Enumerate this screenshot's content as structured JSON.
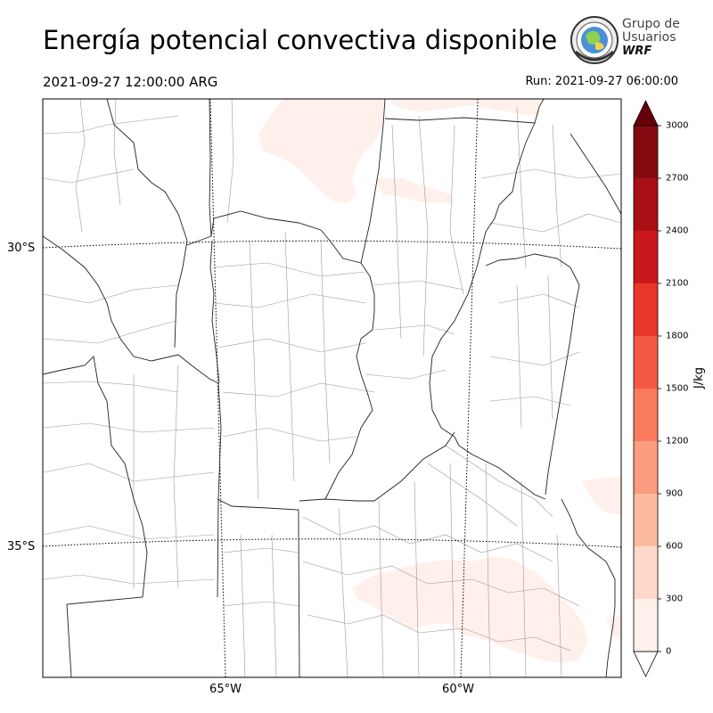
{
  "header": {
    "title": "Energía potencial convectiva disponible",
    "valid_time": "2021-09-27 12:00:00 ARG",
    "run_time": "Run: 2021-09-27 06:00:00"
  },
  "logo": {
    "line1": "Grupo de",
    "line2": "Usuarios",
    "line3": "WRF"
  },
  "map": {
    "projection": "lambert-conformal",
    "lat_labels": [
      "30°S",
      "35°S"
    ],
    "lon_labels": [
      "65°W",
      "60°W"
    ],
    "field": "CAPE",
    "max_level_visible": "0-300"
  },
  "colorbar": {
    "unit": "J/kg",
    "ticks": [
      "0",
      "300",
      "600",
      "900",
      "1200",
      "1500",
      "1800",
      "2100",
      "2400",
      "2700",
      "3000"
    ],
    "colors": [
      "#fff0eb",
      "#fed9cb",
      "#fcbba1",
      "#fc9d80",
      "#fb7c5c",
      "#f45a43",
      "#ea372a",
      "#cb181d",
      "#a91016",
      "#840b12",
      "#67000d"
    ],
    "extend": "both"
  }
}
